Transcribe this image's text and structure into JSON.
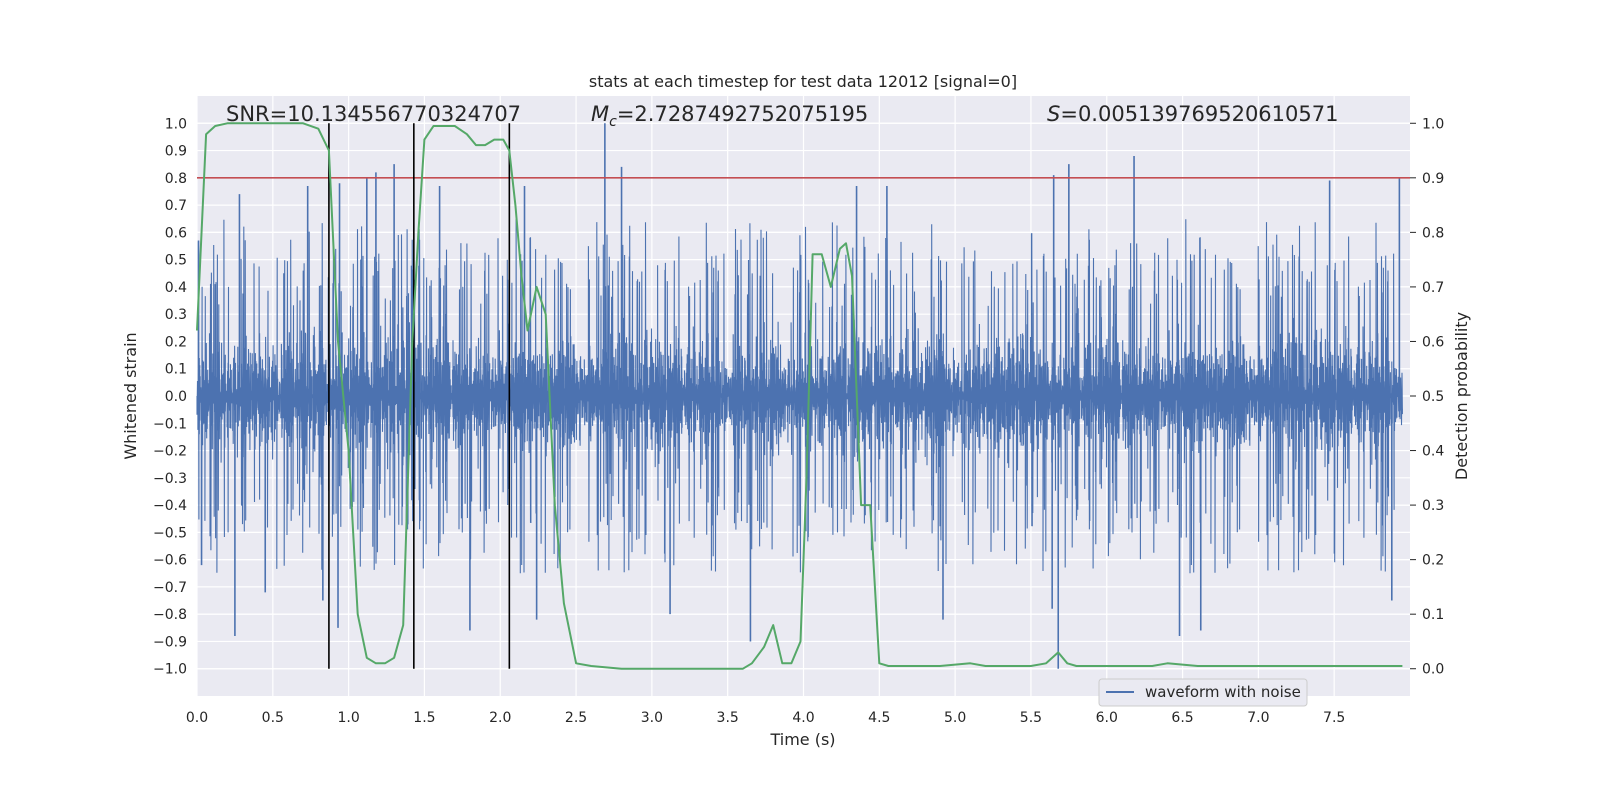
{
  "chart_data": {
    "type": "line",
    "title": "stats at each timestep for test data 12012 [signal=0]",
    "xlabel": "Time (s)",
    "ylabel": "Whitened strain",
    "y2label": "Detection probability",
    "xlim": [
      0.0,
      8.0
    ],
    "ylim": [
      -1.1,
      1.1
    ],
    "y2lim": [
      -0.05,
      1.05
    ],
    "xticks": [
      0.0,
      0.5,
      1.0,
      1.5,
      2.0,
      2.5,
      3.0,
      3.5,
      4.0,
      4.5,
      5.0,
      5.5,
      6.0,
      6.5,
      7.0,
      7.5
    ],
    "xtick_labels": [
      "0.0",
      "0.5",
      "1.0",
      "1.5",
      "2.0",
      "2.5",
      "3.0",
      "3.5",
      "4.0",
      "4.5",
      "5.0",
      "5.5",
      "6.0",
      "6.5",
      "7.0",
      "7.5"
    ],
    "yticks": [
      -1.0,
      -0.9,
      -0.8,
      -0.7,
      -0.6,
      -0.5,
      -0.4,
      -0.3,
      -0.2,
      -0.1,
      0.0,
      0.1,
      0.2,
      0.3,
      0.4,
      0.5,
      0.6,
      0.7,
      0.8,
      0.9,
      1.0
    ],
    "ytick_labels": [
      "−1.0",
      "−0.9",
      "−0.8",
      "−0.7",
      "−0.6",
      "−0.5",
      "−0.4",
      "−0.3",
      "−0.2",
      "−0.1",
      "0.0",
      "0.1",
      "0.2",
      "0.3",
      "0.4",
      "0.5",
      "0.6",
      "0.7",
      "0.8",
      "0.9",
      "1.0"
    ],
    "y2ticks": [
      0.0,
      0.1,
      0.2,
      0.3,
      0.4,
      0.5,
      0.6,
      0.7,
      0.8,
      0.9,
      1.0
    ],
    "y2tick_labels": [
      "0.0",
      "0.1",
      "0.2",
      "0.3",
      "0.4",
      "0.5",
      "0.6",
      "0.7",
      "0.8",
      "0.9",
      "1.0"
    ],
    "annotations": {
      "snr": "SNR=10.134556770324707",
      "mc_symbol": "M",
      "mc_sub": "c",
      "mc_value": "=2.7287492752075195",
      "s_symbol": "S",
      "s_value": "=0.005139769520610571"
    },
    "legend": {
      "label": "waveform with noise",
      "location": "lower center-right"
    },
    "threshold": {
      "y2": 0.9,
      "color": "#c44e52"
    },
    "event_lines_x": [
      0.87,
      1.43,
      2.06
    ],
    "series": [
      {
        "name": "waveform with noise",
        "axis": "left",
        "color": "#4c72b0",
        "x_range": [
          0.0,
          7.95
        ],
        "typical_envelope": 0.4,
        "peaks": [
          {
            "x": 0.01,
            "y": 0.57
          },
          {
            "x": 0.03,
            "y": -0.62
          },
          {
            "x": 0.25,
            "y": -0.88
          },
          {
            "x": 0.28,
            "y": 0.74
          },
          {
            "x": 0.45,
            "y": -0.72
          },
          {
            "x": 0.73,
            "y": 0.77
          },
          {
            "x": 0.83,
            "y": -0.75
          },
          {
            "x": 0.93,
            "y": -0.85
          },
          {
            "x": 0.94,
            "y": 0.78
          },
          {
            "x": 1.12,
            "y": 0.8
          },
          {
            "x": 1.18,
            "y": 0.82
          },
          {
            "x": 1.3,
            "y": 0.85
          },
          {
            "x": 1.6,
            "y": 0.77
          },
          {
            "x": 1.8,
            "y": -0.86
          },
          {
            "x": 2.16,
            "y": 0.77
          },
          {
            "x": 2.24,
            "y": -0.82
          },
          {
            "x": 2.69,
            "y": 1.0
          },
          {
            "x": 2.8,
            "y": 0.84
          },
          {
            "x": 3.12,
            "y": -0.8
          },
          {
            "x": 3.65,
            "y": -0.9
          },
          {
            "x": 4.35,
            "y": 0.77
          },
          {
            "x": 4.55,
            "y": 0.77
          },
          {
            "x": 4.92,
            "y": -0.82
          },
          {
            "x": 5.64,
            "y": -0.78
          },
          {
            "x": 5.65,
            "y": 0.81
          },
          {
            "x": 5.68,
            "y": -1.0
          },
          {
            "x": 5.75,
            "y": 0.85
          },
          {
            "x": 6.18,
            "y": 0.88
          },
          {
            "x": 6.48,
            "y": -0.88
          },
          {
            "x": 6.62,
            "y": -0.86
          },
          {
            "x": 7.47,
            "y": 0.79
          },
          {
            "x": 7.88,
            "y": -0.75
          },
          {
            "x": 7.93,
            "y": 0.8
          }
        ]
      },
      {
        "name": "detection probability",
        "axis": "right",
        "color": "#55a868",
        "x": [
          0.0,
          0.06,
          0.12,
          0.2,
          0.3,
          0.4,
          0.5,
          0.6,
          0.7,
          0.8,
          0.87,
          0.93,
          1.0,
          1.06,
          1.12,
          1.18,
          1.24,
          1.3,
          1.36,
          1.42,
          1.46,
          1.5,
          1.56,
          1.62,
          1.7,
          1.78,
          1.84,
          1.9,
          1.96,
          2.02,
          2.06,
          2.1,
          2.14,
          2.18,
          2.24,
          2.3,
          2.36,
          2.42,
          2.5,
          2.6,
          2.8,
          3.0,
          3.2,
          3.4,
          3.6,
          3.66,
          3.74,
          3.8,
          3.86,
          3.92,
          3.98,
          4.02,
          4.06,
          4.12,
          4.18,
          4.24,
          4.28,
          4.32,
          4.38,
          4.44,
          4.5,
          4.56,
          4.7,
          4.9,
          5.1,
          5.2,
          5.3,
          5.5,
          5.6,
          5.68,
          5.74,
          5.8,
          5.9,
          6.0,
          6.3,
          6.4,
          6.6,
          7.0,
          7.4,
          7.8,
          7.95
        ],
        "y": [
          0.62,
          0.98,
          0.995,
          1.0,
          1.0,
          1.0,
          1.0,
          1.0,
          1.0,
          0.99,
          0.95,
          0.6,
          0.4,
          0.1,
          0.02,
          0.01,
          0.01,
          0.02,
          0.08,
          0.6,
          0.8,
          0.97,
          0.995,
          0.995,
          0.995,
          0.98,
          0.96,
          0.96,
          0.97,
          0.97,
          0.95,
          0.85,
          0.72,
          0.62,
          0.7,
          0.65,
          0.3,
          0.12,
          0.01,
          0.005,
          0.0,
          0.0,
          0.0,
          0.0,
          0.0,
          0.01,
          0.04,
          0.08,
          0.01,
          0.01,
          0.05,
          0.35,
          0.76,
          0.76,
          0.7,
          0.77,
          0.78,
          0.72,
          0.3,
          0.3,
          0.01,
          0.005,
          0.005,
          0.005,
          0.01,
          0.005,
          0.005,
          0.005,
          0.01,
          0.03,
          0.01,
          0.005,
          0.005,
          0.005,
          0.005,
          0.01,
          0.005,
          0.005,
          0.005,
          0.005,
          0.005
        ]
      }
    ]
  }
}
